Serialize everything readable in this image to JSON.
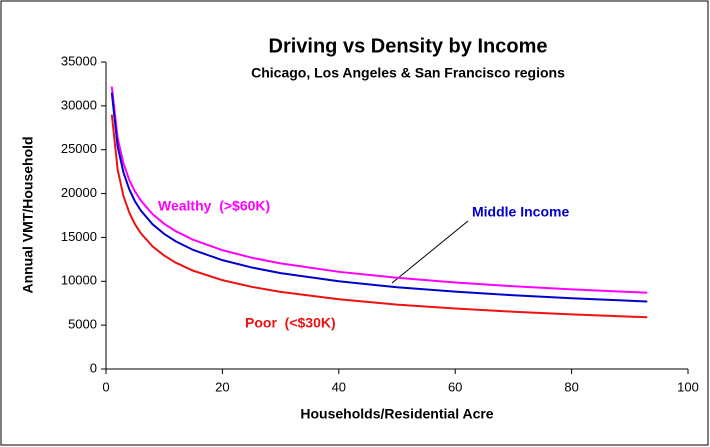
{
  "chart_data": {
    "type": "line",
    "title": "Driving vs Density by Income",
    "subtitle": "Chicago, Los Angeles & San Francisco regions",
    "x_label": "Households/Residential Acre",
    "y_label": "Annual VMT/Household",
    "x": [
      1,
      2,
      3,
      4,
      5,
      6,
      8,
      10,
      12,
      15,
      20,
      25,
      30,
      40,
      50,
      60,
      70,
      80,
      93
    ],
    "series": [
      {
        "name": "Wealthy  (>$60K)",
        "color": "#ff00ff",
        "values": [
          32200,
          26340,
          23440,
          21540,
          20220,
          19190,
          17650,
          16550,
          15710,
          14720,
          13550,
          12690,
          12040,
          11080,
          10400,
          9860,
          9430,
          9080,
          8700
        ]
      },
      {
        "name": "Middle Income",
        "color": "#0000cc",
        "values": [
          31500,
          25390,
          22400,
          20480,
          19090,
          18050,
          16500,
          15400,
          14550,
          13570,
          12410,
          11580,
          10930,
          10000,
          9320,
          8820,
          8410,
          8060,
          7700
        ]
      },
      {
        "name": "Poor  (<$30K)",
        "color": "#ee1111",
        "values": [
          29000,
          22740,
          19720,
          17830,
          16480,
          15460,
          13980,
          12930,
          12120,
          11200,
          10130,
          9370,
          8790,
          7950,
          7340,
          6890,
          6530,
          6230,
          5900
        ]
      }
    ],
    "xlim": [
      0,
      100
    ],
    "xticks": [
      0,
      20,
      40,
      60,
      80,
      100
    ],
    "ylim": [
      0,
      35000
    ],
    "yticks": [
      0,
      5000,
      10000,
      15000,
      20000,
      25000,
      30000,
      35000
    ]
  }
}
